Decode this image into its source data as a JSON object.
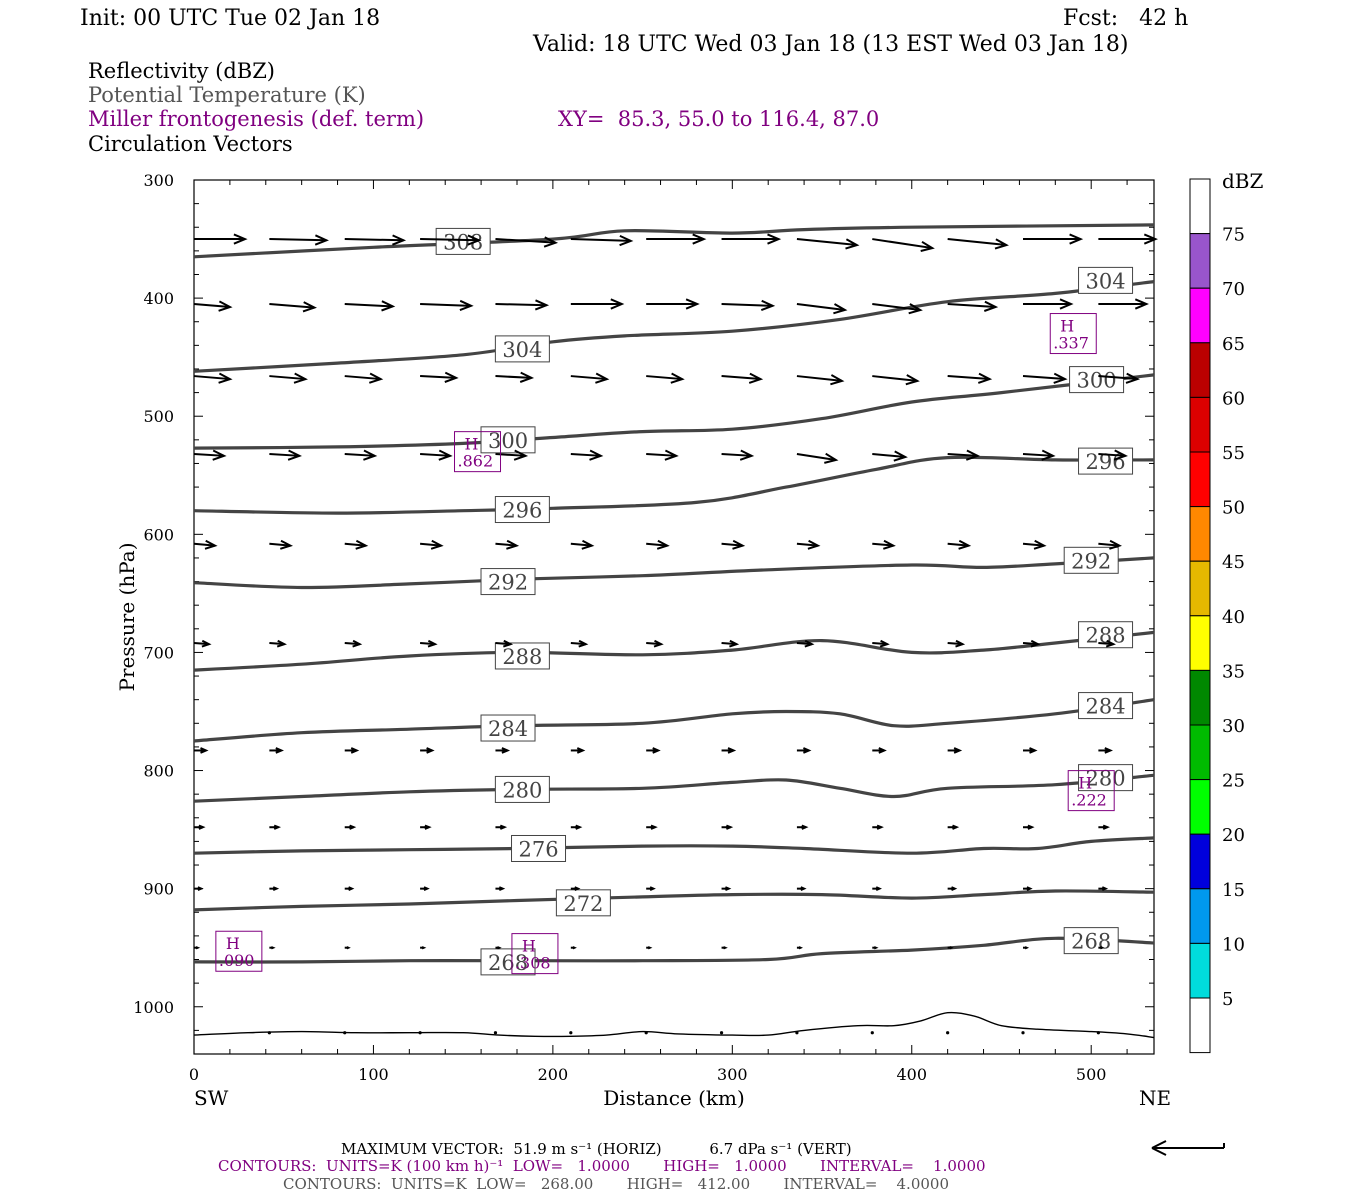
{
  "header": {
    "init": "Init: 00 UTC Tue 02 Jan 18",
    "fcst": "Fcst:   42 h",
    "valid": "Valid: 18 UTC Wed 03 Jan 18 (13 EST Wed 03 Jan 18)",
    "titles": [
      {
        "text": "Reflectivity (dBZ)",
        "color": "#000000"
      },
      {
        "text": "Potential Temperature (K)",
        "color": "#555555"
      },
      {
        "text": "Miller frontogenesis (def. term)",
        "color": "#800080"
      },
      {
        "text": "Circulation Vectors",
        "color": "#000000"
      }
    ],
    "xy": "XY=  85.3, 55.0 to 116.4, 87.0"
  },
  "chart_data": {
    "type": "line",
    "xlabel": "Distance (km)",
    "ylabel": "Pressure (hPa)",
    "xlim": [
      0,
      535
    ],
    "ylim": [
      1040,
      300
    ],
    "x_ticks": [
      0,
      100,
      200,
      300,
      400,
      500
    ],
    "y_ticks": [
      300,
      400,
      500,
      600,
      700,
      800,
      900,
      1000
    ],
    "end_labels": {
      "left": "SW",
      "right": "NE"
    },
    "theta_contours": [
      {
        "value": 308,
        "points": [
          [
            0,
            365
          ],
          [
            100,
            357
          ],
          [
            200,
            350
          ],
          [
            240,
            343
          ],
          [
            300,
            345
          ],
          [
            340,
            342
          ],
          [
            400,
            340
          ],
          [
            535,
            338
          ]
        ],
        "labels": [
          [
            150,
            352
          ]
        ]
      },
      {
        "value": 304,
        "points": [
          [
            0,
            462
          ],
          [
            80,
            455
          ],
          [
            150,
            448
          ],
          [
            200,
            437
          ],
          [
            240,
            432
          ],
          [
            300,
            428
          ],
          [
            360,
            418
          ],
          [
            420,
            403
          ],
          [
            480,
            396
          ],
          [
            535,
            386
          ]
        ],
        "labels": [
          [
            183,
            443
          ],
          [
            508,
            385
          ]
        ]
      },
      {
        "value": 300,
        "points": [
          [
            0,
            527
          ],
          [
            80,
            526
          ],
          [
            150,
            523
          ],
          [
            200,
            518
          ],
          [
            250,
            513
          ],
          [
            300,
            511
          ],
          [
            350,
            502
          ],
          [
            400,
            488
          ],
          [
            450,
            480
          ],
          [
            535,
            465
          ]
        ],
        "labels": [
          [
            175,
            520
          ],
          [
            503,
            469
          ]
        ]
      },
      {
        "value": 296,
        "points": [
          [
            0,
            580
          ],
          [
            80,
            582
          ],
          [
            150,
            580
          ],
          [
            200,
            578
          ],
          [
            280,
            573
          ],
          [
            330,
            560
          ],
          [
            380,
            545
          ],
          [
            420,
            535
          ],
          [
            480,
            537
          ],
          [
            535,
            537
          ]
        ],
        "labels": [
          [
            183,
            579
          ],
          [
            508,
            538
          ]
        ]
      },
      {
        "value": 292,
        "points": [
          [
            0,
            641
          ],
          [
            60,
            645
          ],
          [
            120,
            642
          ],
          [
            180,
            638
          ],
          [
            250,
            635
          ],
          [
            320,
            630
          ],
          [
            400,
            626
          ],
          [
            440,
            628
          ],
          [
            480,
            625
          ],
          [
            535,
            620
          ]
        ],
        "labels": [
          [
            175,
            640
          ],
          [
            500,
            622
          ]
        ]
      },
      {
        "value": 288,
        "points": [
          [
            0,
            715
          ],
          [
            60,
            710
          ],
          [
            120,
            703
          ],
          [
            180,
            700
          ],
          [
            250,
            702
          ],
          [
            300,
            698
          ],
          [
            350,
            690
          ],
          [
            400,
            700
          ],
          [
            440,
            698
          ],
          [
            480,
            692
          ],
          [
            535,
            683
          ]
        ],
        "labels": [
          [
            183,
            703
          ],
          [
            508,
            685
          ]
        ]
      },
      {
        "value": 284,
        "points": [
          [
            0,
            775
          ],
          [
            60,
            768
          ],
          [
            120,
            765
          ],
          [
            180,
            762
          ],
          [
            250,
            760
          ],
          [
            300,
            752
          ],
          [
            330,
            750
          ],
          [
            360,
            752
          ],
          [
            390,
            762
          ],
          [
            420,
            760
          ],
          [
            480,
            752
          ],
          [
            535,
            740
          ]
        ],
        "labels": [
          [
            175,
            764
          ],
          [
            508,
            745
          ]
        ]
      },
      {
        "value": 280,
        "points": [
          [
            0,
            826
          ],
          [
            60,
            822
          ],
          [
            120,
            818
          ],
          [
            180,
            816
          ],
          [
            250,
            815
          ],
          [
            300,
            810
          ],
          [
            330,
            808
          ],
          [
            360,
            815
          ],
          [
            390,
            822
          ],
          [
            420,
            815
          ],
          [
            480,
            812
          ],
          [
            535,
            804
          ]
        ],
        "labels": [
          [
            183,
            816
          ],
          [
            508,
            806
          ]
        ]
      },
      {
        "value": 276,
        "points": [
          [
            0,
            870
          ],
          [
            60,
            868
          ],
          [
            120,
            867
          ],
          [
            180,
            866
          ],
          [
            250,
            864
          ],
          [
            300,
            864
          ],
          [
            340,
            866
          ],
          [
            400,
            870
          ],
          [
            440,
            866
          ],
          [
            470,
            866
          ],
          [
            500,
            860
          ],
          [
            535,
            857
          ]
        ],
        "labels": [
          [
            192,
            866
          ]
        ]
      },
      {
        "value": 272,
        "points": [
          [
            0,
            918
          ],
          [
            60,
            915
          ],
          [
            120,
            913
          ],
          [
            180,
            910
          ],
          [
            250,
            907
          ],
          [
            300,
            905
          ],
          [
            350,
            905
          ],
          [
            400,
            908
          ],
          [
            440,
            905
          ],
          [
            480,
            902
          ],
          [
            535,
            903
          ]
        ],
        "labels": [
          [
            217,
            912
          ]
        ]
      },
      {
        "value": 268,
        "points": [
          [
            0,
            962
          ],
          [
            60,
            962
          ],
          [
            120,
            961
          ],
          [
            180,
            961
          ],
          [
            250,
            961
          ],
          [
            320,
            960
          ],
          [
            350,
            955
          ],
          [
            400,
            952
          ],
          [
            440,
            948
          ],
          [
            480,
            942
          ],
          [
            535,
            946
          ]
        ],
        "labels": [
          [
            175,
            962
          ],
          [
            500,
            944
          ]
        ]
      }
    ],
    "terrain": [
      [
        0,
        1024
      ],
      [
        30,
        1022
      ],
      [
        60,
        1021
      ],
      [
        90,
        1022
      ],
      [
        120,
        1022
      ],
      [
        150,
        1022
      ],
      [
        170,
        1024
      ],
      [
        190,
        1025
      ],
      [
        210,
        1025
      ],
      [
        230,
        1024
      ],
      [
        250,
        1021
      ],
      [
        270,
        1023
      ],
      [
        300,
        1024
      ],
      [
        320,
        1024
      ],
      [
        340,
        1020
      ],
      [
        370,
        1016
      ],
      [
        390,
        1016
      ],
      [
        405,
        1012
      ],
      [
        420,
        1005
      ],
      [
        435,
        1008
      ],
      [
        450,
        1016
      ],
      [
        470,
        1019
      ],
      [
        500,
        1021
      ],
      [
        520,
        1023
      ],
      [
        535,
        1026
      ]
    ],
    "frontogenesis_highs": [
      {
        "x": 490,
        "p": 430,
        "value": ".337"
      },
      {
        "x": 158,
        "p": 530,
        "value": ".862"
      },
      {
        "x": 500,
        "p": 817,
        "value": ".222"
      },
      {
        "x": 25,
        "p": 953,
        "value": ".090"
      },
      {
        "x": 190,
        "p": 955,
        "value": ".308"
      }
    ],
    "vectors": [
      {
        "p": 350,
        "x": [
          0,
          42,
          84,
          126,
          168,
          210,
          252,
          294,
          336,
          378,
          420,
          462,
          504
        ],
        "u": [
          8.5,
          9.5,
          9.8,
          9.8,
          10,
          10,
          9.6,
          9.5,
          10,
          10,
          9.8,
          9.6,
          9.5
        ],
        "v": [
          0,
          -0.2,
          -0.2,
          -0.2,
          -0.6,
          -0.3,
          0,
          0,
          -1,
          -1.5,
          -1,
          0,
          0
        ]
      },
      {
        "p": 405,
        "x": [
          0,
          42,
          84,
          126,
          168,
          210,
          252,
          294,
          336,
          378,
          420,
          462,
          504
        ],
        "u": [
          6,
          7.5,
          8,
          8.5,
          8.5,
          8.5,
          8.5,
          8.5,
          8,
          8,
          8,
          8,
          8
        ],
        "v": [
          -0.5,
          -0.6,
          -0.4,
          -0.3,
          -0.2,
          0,
          0,
          -0.3,
          -1,
          -1,
          -0.5,
          0,
          0
        ]
      },
      {
        "p": 466,
        "x": [
          0,
          42,
          84,
          126,
          168,
          210,
          252,
          294,
          336,
          378,
          420,
          462,
          504
        ],
        "u": [
          6,
          6,
          6,
          6,
          6,
          6,
          6,
          6.5,
          7.5,
          7.5,
          7,
          7,
          6.5
        ],
        "v": [
          -0.5,
          -0.5,
          -0.5,
          -0.3,
          -0.3,
          -0.5,
          -0.5,
          -0.5,
          -0.8,
          -0.8,
          -0.5,
          -0.5,
          -0.5
        ]
      },
      {
        "p": 532,
        "x": [
          0,
          42,
          84,
          126,
          168,
          210,
          252,
          294,
          336,
          378,
          420,
          462,
          504
        ],
        "u": [
          5,
          5,
          5,
          5,
          5,
          5,
          5,
          5,
          6.5,
          5.5,
          5,
          5,
          4.5
        ],
        "v": [
          -0.3,
          -0.3,
          -0.3,
          -0.3,
          -0.3,
          -0.3,
          -0.3,
          -0.3,
          -1,
          -0.5,
          -0.3,
          -0.3,
          -0.3
        ]
      },
      {
        "p": 608,
        "x": [
          0,
          42,
          84,
          126,
          168,
          210,
          252,
          294,
          336,
          378,
          420,
          462,
          504
        ],
        "u": [
          3.5,
          3.5,
          3.5,
          3.5,
          3.5,
          3.5,
          3.5,
          3.5,
          3.5,
          3.5,
          3.5,
          3.5,
          3.5
        ],
        "v": [
          -0.3,
          -0.3,
          -0.3,
          -0.3,
          -0.3,
          -0.3,
          -0.3,
          -0.3,
          -0.3,
          -0.3,
          -0.3,
          -0.3,
          -0.3
        ]
      },
      {
        "p": 692,
        "x": [
          0,
          42,
          84,
          126,
          168,
          210,
          252,
          294,
          336,
          378,
          420,
          462,
          504
        ],
        "u": [
          2.5,
          2.5,
          2.5,
          2.5,
          2.5,
          2.5,
          2.5,
          2.5,
          2.5,
          2.5,
          2.5,
          2.5,
          2.5
        ],
        "v": [
          -0.2,
          -0.2,
          -0.2,
          -0.2,
          -0.2,
          -0.2,
          -0.2,
          -0.2,
          -0.2,
          -0.2,
          -0.2,
          -0.2,
          -0.2
        ]
      },
      {
        "p": 783,
        "x": [
          0,
          42,
          84,
          126,
          168,
          210,
          252,
          294,
          336,
          378,
          420,
          462,
          504
        ],
        "u": [
          2,
          2,
          2,
          2,
          2,
          2,
          2,
          2,
          2,
          2,
          2,
          2,
          2
        ],
        "v": [
          0,
          0,
          0,
          0,
          0,
          0,
          0,
          0,
          0,
          0,
          0,
          0,
          0
        ]
      },
      {
        "p": 848,
        "x": [
          0,
          42,
          84,
          126,
          168,
          210,
          252,
          294,
          336,
          378,
          420,
          462,
          504
        ],
        "u": [
          1.5,
          1.5,
          1.5,
          1.5,
          1.5,
          1.5,
          1.5,
          1.5,
          1.5,
          1.5,
          1.5,
          1.5,
          1.5
        ],
        "v": [
          0,
          0,
          0,
          0,
          0,
          0,
          0,
          0,
          0,
          0,
          0,
          0,
          0
        ]
      },
      {
        "p": 900,
        "x": [
          0,
          42,
          84,
          126,
          168,
          210,
          252,
          294,
          336,
          378,
          420,
          462,
          504
        ],
        "u": [
          1.2,
          1.2,
          1.2,
          1.2,
          1.2,
          1.2,
          1.2,
          1.2,
          1.2,
          1.2,
          1.2,
          1.2,
          1.2
        ],
        "v": [
          0,
          0,
          0,
          0,
          0,
          0,
          0,
          0,
          0,
          0,
          0,
          0,
          0
        ]
      },
      {
        "p": 950,
        "x": [
          0,
          42,
          84,
          126,
          168,
          210,
          252,
          294,
          336,
          378,
          420,
          462,
          504
        ],
        "u": [
          0.6,
          0.6,
          0.6,
          0.6,
          0.6,
          0.6,
          0.6,
          0.6,
          0.6,
          0.6,
          0.6,
          0.6,
          0.6
        ],
        "v": [
          0,
          0,
          0,
          0,
          0,
          0,
          0,
          0,
          0,
          0,
          0,
          0,
          0
        ]
      },
      {
        "p": 1022,
        "x": [
          42,
          84,
          126,
          168,
          210,
          252,
          294,
          336,
          378,
          420,
          462,
          504
        ],
        "u": [
          0.3,
          0.3,
          0.3,
          0.3,
          0.3,
          0.3,
          0.3,
          0.3,
          0.3,
          0.3,
          0.3,
          0.3
        ],
        "v": [
          0,
          0,
          0,
          0,
          0,
          0,
          0,
          0,
          0,
          0,
          0,
          0
        ]
      }
    ],
    "colorbar": {
      "title": "dBZ",
      "labels": [
        "75",
        "70",
        "65",
        "60",
        "55",
        "50",
        "45",
        "40",
        "35",
        "30",
        "25",
        "20",
        "15",
        "10",
        "5"
      ],
      "bins": [
        "#ffffff",
        "#9955cc",
        "#ff00ff",
        "#bb0000",
        "#dd0000",
        "#ff0000",
        "#ff8800",
        "#e5b800",
        "#ffff00",
        "#008800",
        "#00bb00",
        "#00ff00",
        "#0000dd",
        "#0099ee",
        "#00dddd",
        "#ffffff"
      ]
    }
  },
  "footer": {
    "max_vector": "MAXIMUM VECTOR:  51.9 m s⁻¹ (HORIZ)          6.7 dPa s⁻¹ (VERT)",
    "contours1": "CONTOURS:  UNITS=K (100 km h)⁻¹  LOW=   1.0000       HIGH=   1.0000       INTERVAL=    1.0000",
    "contours2": "CONTOURS:  UNITS=K  LOW=   268.00       HIGH=   412.00       INTERVAL=    4.0000"
  }
}
